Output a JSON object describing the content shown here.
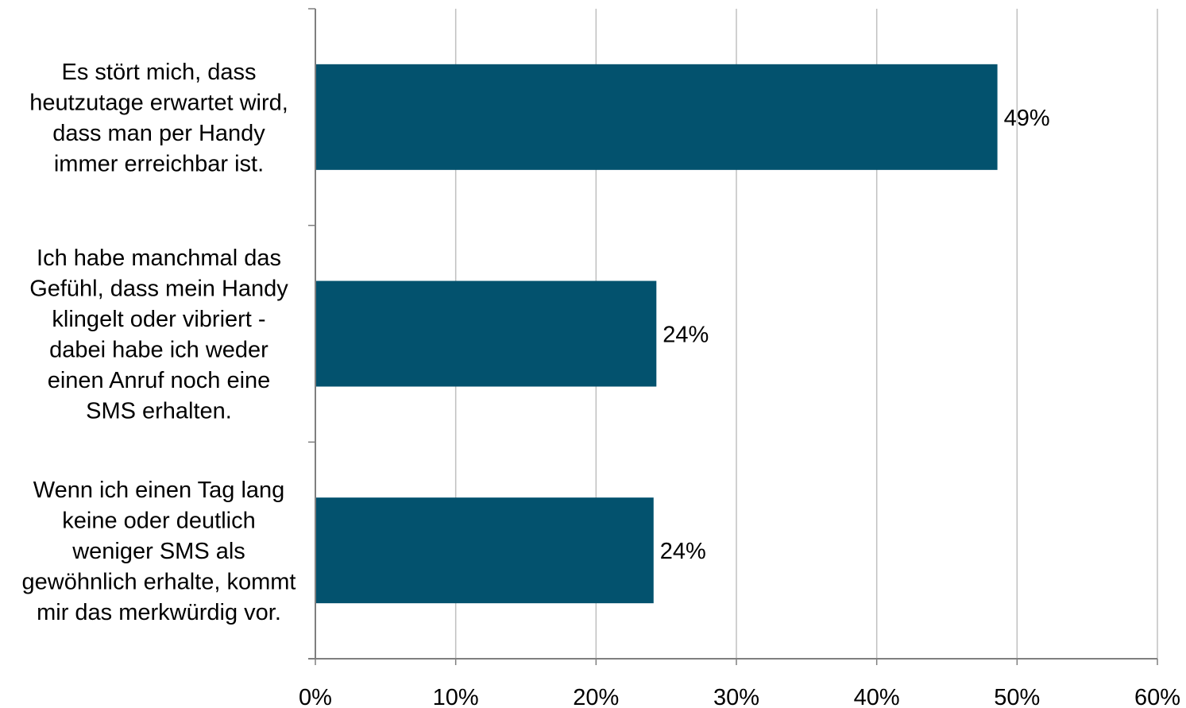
{
  "chart_data": {
    "type": "bar",
    "orientation": "horizontal",
    "categories": [
      [
        "Es stört mich, dass",
        "heutzutage erwartet wird,",
        "dass man per Handy",
        "immer erreichbar ist."
      ],
      [
        "Ich habe manchmal das",
        "Gefühl, dass mein Handy",
        "klingelt oder vibriert -",
        "dabei habe ich weder",
        "einen Anruf noch eine",
        "SMS erhalten."
      ],
      [
        "Wenn ich einen Tag lang",
        "keine oder deutlich",
        "weniger SMS als",
        "gewöhnlich erhalte, kommt",
        "mir das merkwürdig vor."
      ]
    ],
    "values": [
      48.6,
      24.3,
      24.1
    ],
    "data_labels": [
      "49%",
      "24%",
      "24%"
    ],
    "xlim": [
      0,
      60
    ],
    "xticks": [
      0,
      10,
      20,
      30,
      40,
      50,
      60
    ],
    "xtick_labels": [
      "0%",
      "10%",
      "20%",
      "30%",
      "40%",
      "50%",
      "60%"
    ],
    "grid": true,
    "legend": "none",
    "bar_color": "#03526e",
    "grid_color": "#c0c0c0",
    "axis_color": "#7f7f7f"
  }
}
